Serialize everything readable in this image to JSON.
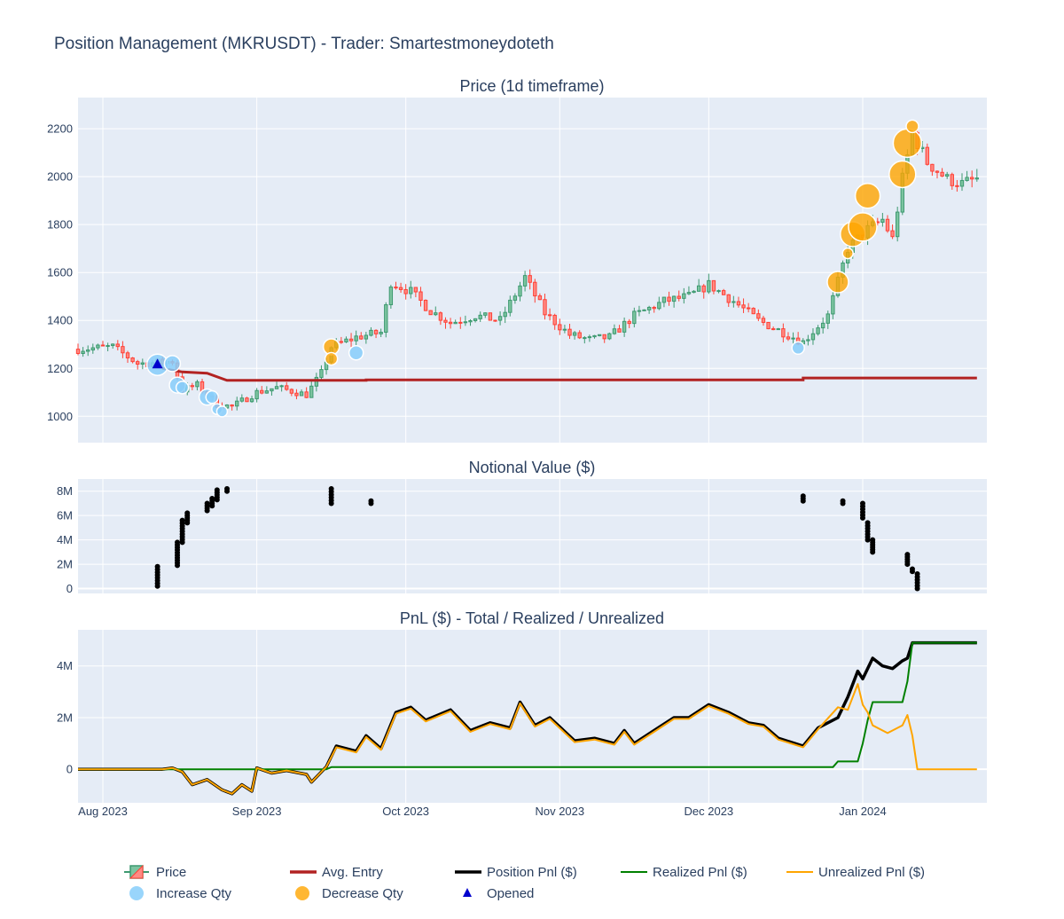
{
  "figure": {
    "title": "Position Management (MKRUSDT) - Trader: Smartestmoneydoteth",
    "colors": {
      "plot_bg": "#e5ecf6",
      "grid": "#ffffff",
      "text": "#2a3f5f",
      "candle_up": "#3d9970",
      "candle_down": "#ff4136",
      "avg_entry": "#b22222",
      "position_pnl": "#000000",
      "realized_pnl": "#008000",
      "unrealized_pnl": "#ffa500",
      "increase": "#87cefa",
      "decrease": "#ffa500",
      "opened": "#0000cd"
    }
  },
  "chart_data": [
    {
      "id": "price",
      "type": "candlestick",
      "title": "Price (1d timeframe)",
      "x_range": [
        "2023-07-27",
        "2024-01-26"
      ],
      "ylim": [
        890,
        2330
      ],
      "y_ticks": [
        1000,
        1200,
        1400,
        1600,
        1800,
        2000,
        2200
      ],
      "y_tick_labels": [
        "1000",
        "1200",
        "1400",
        "1600",
        "1800",
        "2000",
        "2200"
      ],
      "closes": [
        [
          "2023-07-27",
          1280
        ],
        [
          "2023-08-03",
          1290
        ],
        [
          "2023-08-08",
          1220
        ],
        [
          "2023-08-13",
          1225
        ],
        [
          "2023-08-15",
          1230
        ],
        [
          "2023-08-17",
          1110
        ],
        [
          "2023-08-20",
          1130
        ],
        [
          "2023-08-24",
          1050
        ],
        [
          "2023-08-27",
          1040
        ],
        [
          "2023-09-01",
          1100
        ],
        [
          "2023-09-05",
          1120
        ],
        [
          "2023-09-11",
          1090
        ],
        [
          "2023-09-14",
          1180
        ],
        [
          "2023-09-16",
          1290
        ],
        [
          "2023-09-21",
          1330
        ],
        [
          "2023-09-26",
          1350
        ],
        [
          "2023-09-28",
          1560
        ],
        [
          "2023-10-02",
          1520
        ],
        [
          "2023-10-06",
          1440
        ],
        [
          "2023-10-10",
          1390
        ],
        [
          "2023-10-15",
          1420
        ],
        [
          "2023-10-20",
          1400
        ],
        [
          "2023-10-25",
          1580
        ],
        [
          "2023-10-29",
          1430
        ],
        [
          "2023-11-03",
          1340
        ],
        [
          "2023-11-07",
          1320
        ],
        [
          "2023-11-11",
          1330
        ],
        [
          "2023-11-16",
          1420
        ],
        [
          "2023-11-22",
          1480
        ],
        [
          "2023-11-27",
          1500
        ],
        [
          "2023-12-01",
          1550
        ],
        [
          "2023-12-06",
          1480
        ],
        [
          "2023-12-11",
          1400
        ],
        [
          "2023-12-16",
          1350
        ],
        [
          "2023-12-20",
          1310
        ],
        [
          "2023-12-25",
          1420
        ],
        [
          "2023-12-29",
          1700
        ],
        [
          "2024-01-02",
          1780
        ],
        [
          "2024-01-05",
          1820
        ],
        [
          "2024-01-07",
          1740
        ],
        [
          "2024-01-09",
          1990
        ],
        [
          "2024-01-11",
          2180
        ],
        [
          "2024-01-14",
          2060
        ],
        [
          "2024-01-18",
          1990
        ],
        [
          "2024-01-21",
          1970
        ],
        [
          "2024-01-24",
          1990
        ]
      ],
      "avg_entry": [
        [
          "2023-08-13",
          1200
        ],
        [
          "2023-08-17",
          1185
        ],
        [
          "2023-08-22",
          1180
        ],
        [
          "2023-08-26",
          1150
        ],
        [
          "2023-09-23",
          1150
        ],
        [
          "2023-09-23",
          1152
        ],
        [
          "2023-12-20",
          1152
        ],
        [
          "2023-12-20",
          1160
        ],
        [
          "2024-01-24",
          1160
        ]
      ],
      "increase_qty": [
        [
          "2023-08-12",
          1215,
          12
        ],
        [
          "2023-08-15",
          1220,
          9
        ],
        [
          "2023-08-16",
          1130,
          9
        ],
        [
          "2023-08-17",
          1120,
          7
        ],
        [
          "2023-08-22",
          1080,
          9
        ],
        [
          "2023-08-23",
          1080,
          7
        ],
        [
          "2023-08-24",
          1030,
          6
        ],
        [
          "2023-08-25",
          1020,
          6
        ],
        [
          "2023-09-21",
          1265,
          8
        ],
        [
          "2023-12-19",
          1285,
          7
        ]
      ],
      "decrease_qty": [
        [
          "2023-09-16",
          1290,
          9
        ],
        [
          "2023-09-16",
          1240,
          7
        ],
        [
          "2023-12-27",
          1560,
          12
        ],
        [
          "2023-12-29",
          1680,
          6
        ],
        [
          "2023-12-30",
          1760,
          14
        ],
        [
          "2024-01-01",
          1790,
          16
        ],
        [
          "2024-01-02",
          1920,
          14
        ],
        [
          "2024-01-09",
          2010,
          15
        ],
        [
          "2024-01-10",
          2140,
          16
        ],
        [
          "2024-01-11",
          2210,
          7
        ]
      ],
      "opened": [
        [
          "2023-08-12",
          1215
        ]
      ]
    },
    {
      "id": "notional",
      "type": "scatter",
      "title": "Notional Value ($)",
      "ylim": [
        -400000,
        9000000
      ],
      "y_ticks": [
        0,
        2000000,
        4000000,
        6000000,
        8000000
      ],
      "y_tick_labels": [
        "0",
        "2M",
        "4M",
        "6M",
        "8M"
      ],
      "clusters": [
        [
          "2023-08-12",
          200000,
          1800000
        ],
        [
          "2023-08-16",
          1900000,
          3800000
        ],
        [
          "2023-08-17",
          3800000,
          5600000
        ],
        [
          "2023-08-18",
          5400000,
          6200000
        ],
        [
          "2023-08-22",
          6400000,
          7000000
        ],
        [
          "2023-08-23",
          6800000,
          7400000
        ],
        [
          "2023-08-24",
          7300000,
          8100000
        ],
        [
          "2023-08-26",
          8000000,
          8200000
        ],
        [
          "2023-09-16",
          7000000,
          8200000
        ],
        [
          "2023-09-24",
          7000000,
          7200000
        ],
        [
          "2023-12-20",
          7200000,
          7600000
        ],
        [
          "2023-12-28",
          7000000,
          7200000
        ],
        [
          "2024-01-01",
          5800000,
          7000000
        ],
        [
          "2024-01-02",
          4000000,
          5400000
        ],
        [
          "2024-01-03",
          3000000,
          4000000
        ],
        [
          "2024-01-10",
          2000000,
          2800000
        ],
        [
          "2024-01-11",
          1400000,
          1600000
        ],
        [
          "2024-01-12",
          0,
          1200000
        ]
      ]
    },
    {
      "id": "pnl",
      "type": "line",
      "title": "PnL ($) - Total / Realized / Unrealized",
      "ylim": [
        -1300000,
        5400000
      ],
      "y_ticks": [
        0,
        2000000,
        4000000
      ],
      "y_tick_labels": [
        "0",
        "2M",
        "4M"
      ],
      "x_ticks": [
        "2023-08-01",
        "2023-09-01",
        "2023-10-01",
        "2023-11-01",
        "2023-12-01",
        "2024-01-01"
      ],
      "x_tick_labels": [
        "Aug 2023",
        "Sep 2023",
        "Oct 2023",
        "Nov 2023",
        "Dec 2023",
        "Jan 2024"
      ],
      "series": [
        {
          "name": "Position Pnl ($)",
          "points": [
            [
              "2023-07-27",
              0
            ],
            [
              "2023-08-13",
              0
            ],
            [
              "2023-08-15",
              50000
            ],
            [
              "2023-08-17",
              -100000
            ],
            [
              "2023-08-19",
              -600000
            ],
            [
              "2023-08-22",
              -400000
            ],
            [
              "2023-08-25",
              -800000
            ],
            [
              "2023-08-27",
              -950000
            ],
            [
              "2023-08-29",
              -600000
            ],
            [
              "2023-08-31",
              -850000
            ],
            [
              "2023-09-01",
              50000
            ],
            [
              "2023-09-04",
              -150000
            ],
            [
              "2023-09-07",
              -50000
            ],
            [
              "2023-09-11",
              -200000
            ],
            [
              "2023-09-12",
              -500000
            ],
            [
              "2023-09-15",
              100000
            ],
            [
              "2023-09-17",
              900000
            ],
            [
              "2023-09-21",
              700000
            ],
            [
              "2023-09-23",
              1300000
            ],
            [
              "2023-09-26",
              800000
            ],
            [
              "2023-09-29",
              2200000
            ],
            [
              "2023-10-02",
              2400000
            ],
            [
              "2023-10-05",
              1900000
            ],
            [
              "2023-10-10",
              2300000
            ],
            [
              "2023-10-14",
              1500000
            ],
            [
              "2023-10-18",
              1800000
            ],
            [
              "2023-10-22",
              1600000
            ],
            [
              "2023-10-24",
              2600000
            ],
            [
              "2023-10-27",
              1700000
            ],
            [
              "2023-10-30",
              2000000
            ],
            [
              "2023-11-04",
              1100000
            ],
            [
              "2023-11-08",
              1200000
            ],
            [
              "2023-11-12",
              1000000
            ],
            [
              "2023-11-14",
              1500000
            ],
            [
              "2023-11-16",
              1000000
            ],
            [
              "2023-11-20",
              1500000
            ],
            [
              "2023-11-24",
              2000000
            ],
            [
              "2023-11-27",
              2000000
            ],
            [
              "2023-12-01",
              2500000
            ],
            [
              "2023-12-05",
              2200000
            ],
            [
              "2023-12-09",
              1800000
            ],
            [
              "2023-12-12",
              1700000
            ],
            [
              "2023-12-15",
              1200000
            ],
            [
              "2023-12-20",
              900000
            ],
            [
              "2023-12-23",
              1600000
            ],
            [
              "2023-12-27",
              2000000
            ],
            [
              "2023-12-29",
              2800000
            ],
            [
              "2023-12-31",
              3800000
            ],
            [
              "2024-01-01",
              3500000
            ],
            [
              "2024-01-03",
              4300000
            ],
            [
              "2024-01-05",
              4000000
            ],
            [
              "2024-01-07",
              3900000
            ],
            [
              "2024-01-09",
              4200000
            ],
            [
              "2024-01-10",
              4300000
            ],
            [
              "2024-01-11",
              4900000
            ],
            [
              "2024-01-24",
              4900000
            ]
          ]
        },
        {
          "name": "Realized Pnl ($)",
          "points": [
            [
              "2023-07-27",
              0
            ],
            [
              "2023-09-15",
              0
            ],
            [
              "2023-09-16",
              80000
            ],
            [
              "2023-12-26",
              80000
            ],
            [
              "2023-12-27",
              300000
            ],
            [
              "2023-12-31",
              300000
            ],
            [
              "2024-01-01",
              1000000
            ],
            [
              "2024-01-02",
              1900000
            ],
            [
              "2024-01-03",
              2600000
            ],
            [
              "2024-01-09",
              2600000
            ],
            [
              "2024-01-10",
              3400000
            ],
            [
              "2024-01-11",
              4900000
            ],
            [
              "2024-01-24",
              4900000
            ]
          ]
        },
        {
          "name": "Unrealized Pnl ($)",
          "points": [
            [
              "2023-07-27",
              0
            ],
            [
              "2023-08-13",
              0
            ],
            [
              "2023-08-15",
              50000
            ],
            [
              "2023-08-17",
              -100000
            ],
            [
              "2023-08-19",
              -600000
            ],
            [
              "2023-08-22",
              -400000
            ],
            [
              "2023-08-25",
              -800000
            ],
            [
              "2023-08-27",
              -950000
            ],
            [
              "2023-08-29",
              -600000
            ],
            [
              "2023-08-31",
              -850000
            ],
            [
              "2023-09-01",
              50000
            ],
            [
              "2023-09-04",
              -150000
            ],
            [
              "2023-09-07",
              -50000
            ],
            [
              "2023-09-11",
              -200000
            ],
            [
              "2023-09-12",
              -500000
            ],
            [
              "2023-09-15",
              100000
            ],
            [
              "2023-09-17",
              850000
            ],
            [
              "2023-09-21",
              650000
            ],
            [
              "2023-09-23",
              1250000
            ],
            [
              "2023-09-26",
              750000
            ],
            [
              "2023-09-29",
              2150000
            ],
            [
              "2023-10-02",
              2350000
            ],
            [
              "2023-10-05",
              1850000
            ],
            [
              "2023-10-10",
              2250000
            ],
            [
              "2023-10-14",
              1450000
            ],
            [
              "2023-10-18",
              1750000
            ],
            [
              "2023-10-22",
              1550000
            ],
            [
              "2023-10-24",
              2550000
            ],
            [
              "2023-10-27",
              1650000
            ],
            [
              "2023-10-30",
              1950000
            ],
            [
              "2023-11-04",
              1050000
            ],
            [
              "2023-11-08",
              1150000
            ],
            [
              "2023-11-12",
              950000
            ],
            [
              "2023-11-14",
              1450000
            ],
            [
              "2023-11-16",
              950000
            ],
            [
              "2023-11-20",
              1450000
            ],
            [
              "2023-11-24",
              1950000
            ],
            [
              "2023-11-27",
              1950000
            ],
            [
              "2023-12-01",
              2450000
            ],
            [
              "2023-12-05",
              2150000
            ],
            [
              "2023-12-09",
              1750000
            ],
            [
              "2023-12-12",
              1650000
            ],
            [
              "2023-12-15",
              1150000
            ],
            [
              "2023-12-20",
              850000
            ],
            [
              "2023-12-23",
              1550000
            ],
            [
              "2023-12-27",
              2400000
            ],
            [
              "2023-12-29",
              2300000
            ],
            [
              "2023-12-31",
              3300000
            ],
            [
              "2024-01-01",
              2500000
            ],
            [
              "2024-01-02",
              2200000
            ],
            [
              "2024-01-03",
              1700000
            ],
            [
              "2024-01-06",
              1400000
            ],
            [
              "2024-01-09",
              1700000
            ],
            [
              "2024-01-10",
              2100000
            ],
            [
              "2024-01-11",
              1300000
            ],
            [
              "2024-01-12",
              0
            ],
            [
              "2024-01-24",
              0
            ]
          ]
        }
      ]
    }
  ],
  "legend": {
    "placement": "bottom-center",
    "items": [
      {
        "label": "Price",
        "symbol": "candle"
      },
      {
        "label": "Avg. Entry",
        "symbol": "line-avg"
      },
      {
        "label": "Position Pnl ($)",
        "symbol": "line-pos"
      },
      {
        "label": "Realized Pnl ($)",
        "symbol": "line-real"
      },
      {
        "label": "Unrealized Pnl ($)",
        "symbol": "line-unreal"
      },
      {
        "label": "Increase Qty",
        "symbol": "dot-increase"
      },
      {
        "label": "Decrease Qty",
        "symbol": "dot-decrease"
      },
      {
        "label": "Opened",
        "symbol": "triangle"
      }
    ]
  }
}
